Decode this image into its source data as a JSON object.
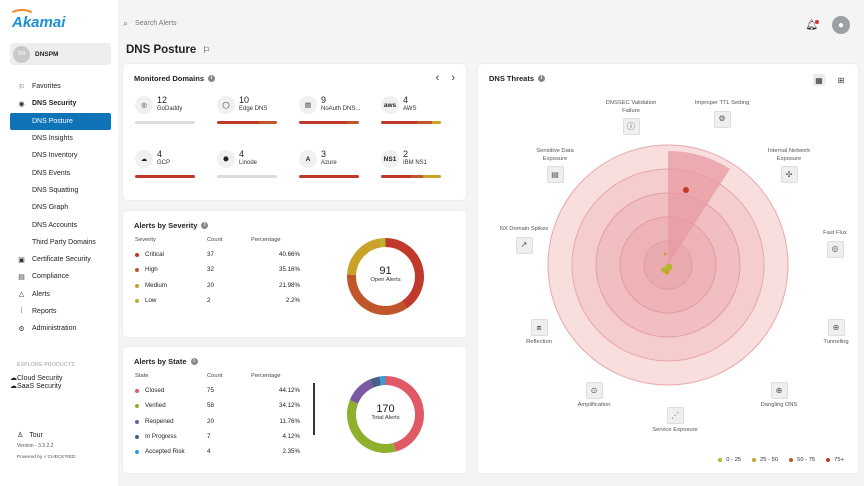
{
  "brand": "Akamai",
  "account": {
    "initials": "DN",
    "name": "DNSPM"
  },
  "nav": [
    {
      "label": "Favorites",
      "icon": "bookmark-icon",
      "glyph": "⚐",
      "bold": false,
      "sub": false,
      "active": false
    },
    {
      "label": "DNS Security",
      "icon": "globe-icon",
      "glyph": "◉",
      "bold": true,
      "sub": false,
      "active": false
    },
    {
      "label": "DNS Posture",
      "icon": "",
      "glyph": "",
      "bold": false,
      "sub": true,
      "active": true
    },
    {
      "label": "DNS Insights",
      "icon": "",
      "glyph": "",
      "bold": false,
      "sub": true,
      "active": false
    },
    {
      "label": "DNS Inventory",
      "icon": "",
      "glyph": "",
      "bold": false,
      "sub": true,
      "active": false
    },
    {
      "label": "DNS Events",
      "icon": "",
      "glyph": "",
      "bold": false,
      "sub": true,
      "active": false
    },
    {
      "label": "DNS Squatting",
      "icon": "",
      "glyph": "",
      "bold": false,
      "sub": true,
      "active": false
    },
    {
      "label": "DNS Graph",
      "icon": "",
      "glyph": "",
      "bold": false,
      "sub": true,
      "active": false
    },
    {
      "label": "DNS Accounts",
      "icon": "",
      "glyph": "",
      "bold": false,
      "sub": true,
      "active": false
    },
    {
      "label": "Third Party Domains",
      "icon": "",
      "glyph": "",
      "bold": false,
      "sub": true,
      "active": false
    },
    {
      "label": "Certificate Security",
      "icon": "certificate-icon",
      "glyph": "▣",
      "bold": false,
      "sub": false,
      "active": false
    },
    {
      "label": "Compliance",
      "icon": "clipboard-icon",
      "glyph": "▤",
      "bold": false,
      "sub": false,
      "active": false
    },
    {
      "label": "Alerts",
      "icon": "warning-icon",
      "glyph": "△",
      "bold": false,
      "sub": false,
      "active": false
    },
    {
      "label": "Reports",
      "icon": "reports-icon",
      "glyph": "⁞",
      "bold": false,
      "sub": false,
      "active": false
    },
    {
      "label": "Administration",
      "icon": "gear-icon",
      "glyph": "⚙",
      "bold": false,
      "sub": false,
      "active": false
    }
  ],
  "explore_label": "EXPLORE PRODUCTS",
  "products": [
    {
      "label": "Cloud Security",
      "icon": "cloud-icon",
      "glyph": "☁"
    },
    {
      "label": "SaaS Security",
      "icon": "cloud-lock-icon",
      "glyph": "☁"
    }
  ],
  "footer": {
    "tour": "Tour",
    "version": "Version - 3.3.2.2",
    "powered": "Powered by ✓CHECK'RED"
  },
  "search_placeholder": "Search Alerts",
  "page_title": "DNS Posture",
  "monitored": {
    "title": "Monitored Domains",
    "domains": [
      {
        "count": "12",
        "name": "GoDaddy",
        "icon": "godaddy-icon",
        "abbr": "◎",
        "bar": [
          0,
          0,
          0,
          0,
          1
        ]
      },
      {
        "count": "10",
        "name": "Edge DNS",
        "icon": "akamai-icon",
        "abbr": "◯",
        "bar": [
          0.7,
          0.3,
          0,
          0,
          0
        ]
      },
      {
        "count": "9",
        "name": "NoAuth DNS...",
        "icon": "noauth-icon",
        "abbr": "▤",
        "bar": [
          0.8,
          0.2,
          0,
          0,
          0
        ]
      },
      {
        "count": "4",
        "name": "AWS",
        "icon": "aws-icon",
        "abbr": "aws",
        "bar": [
          0.6,
          0.25,
          0.15,
          0,
          0
        ]
      },
      {
        "count": "4",
        "name": "GCP",
        "icon": "gcp-icon",
        "abbr": "☁",
        "bar": [
          1,
          0,
          0,
          0,
          0
        ]
      },
      {
        "count": "4",
        "name": "Linode",
        "icon": "linode-icon",
        "abbr": "⬣",
        "bar": [
          0,
          0,
          0,
          0,
          1
        ]
      },
      {
        "count": "3",
        "name": "Azure",
        "icon": "azure-icon",
        "abbr": "A",
        "bar": [
          1,
          0,
          0,
          0,
          0
        ]
      },
      {
        "count": "2",
        "name": "IBM NS1",
        "icon": "ns1-icon",
        "abbr": "NS1",
        "bar": [
          0.5,
          0.2,
          0.3,
          0,
          0
        ]
      }
    ]
  },
  "severity": {
    "title": "Alerts by Severity",
    "headers": [
      "Severity",
      "Count",
      "Percentage"
    ],
    "rows": [
      {
        "label": "Critical",
        "count": "37",
        "pct": "40.66%",
        "color": "#c0392b",
        "value": 37
      },
      {
        "label": "High",
        "count": "32",
        "pct": "35.16%",
        "color": "#c0572b",
        "value": 32
      },
      {
        "label": "Medium",
        "count": "20",
        "pct": "21.98%",
        "color": "#c9a227",
        "value": 20
      },
      {
        "label": "Low",
        "count": "2",
        "pct": "2.2%",
        "color": "#b5b82e",
        "value": 2
      }
    ],
    "total": "91",
    "total_label": "Open Alerts"
  },
  "state": {
    "title": "Alerts by State",
    "headers": [
      "State",
      "Count",
      "Percentage"
    ],
    "rows": [
      {
        "label": "Closed",
        "count": "75",
        "pct": "44.12%",
        "color": "#e05a66",
        "value": 75
      },
      {
        "label": "Verified",
        "count": "58",
        "pct": "34.12%",
        "color": "#8fb02c",
        "value": 58
      },
      {
        "label": "Reopened",
        "count": "20",
        "pct": "11.76%",
        "color": "#7a5aa0",
        "value": 20
      },
      {
        "label": "In Progress",
        "count": "7",
        "pct": "4.12%",
        "color": "#4a5e8a",
        "value": 7
      },
      {
        "label": "Accepted Risk",
        "count": "4",
        "pct": "2.35%",
        "color": "#3a9ad9",
        "value": 4
      }
    ],
    "total": "170",
    "total_label": "Total Alerts"
  },
  "threats": {
    "title": "DNS Threats",
    "categories": [
      {
        "label": "DNSSEC Validation Failure",
        "icon": "info-circle-icon",
        "glyph": "ⓘ"
      },
      {
        "label": "Improper TTL Setting",
        "icon": "gear-icon",
        "glyph": "⚙"
      },
      {
        "label": "Internal Network Exposure",
        "icon": "network-icon",
        "glyph": "✣"
      },
      {
        "label": "Fast Flux",
        "icon": "fast-flux-icon",
        "glyph": "◎"
      },
      {
        "label": "Tunneling",
        "icon": "tunneling-icon",
        "glyph": "⊕"
      },
      {
        "label": "Dangling DNS",
        "icon": "globe-icon",
        "glyph": "⊕"
      },
      {
        "label": "Service Exposure",
        "icon": "share-icon",
        "glyph": "⋰"
      },
      {
        "label": "Amplification",
        "icon": "magnify-icon",
        "glyph": "⊙"
      },
      {
        "label": "Reflection",
        "icon": "reflection-icon",
        "glyph": "⧈"
      },
      {
        "label": "NX Domain Spikes",
        "icon": "trend-icon",
        "glyph": "↗"
      },
      {
        "label": "Sensitive Data Exposure",
        "icon": "document-lock-icon",
        "glyph": "▤"
      }
    ],
    "legend": [
      {
        "label": "0 - 25",
        "color": "#b5b82e"
      },
      {
        "label": "25 - 50",
        "color": "#c9a227"
      },
      {
        "label": "50 - 75",
        "color": "#c0572b"
      },
      {
        "label": "75+",
        "color": "#c0392b"
      }
    ]
  }
}
